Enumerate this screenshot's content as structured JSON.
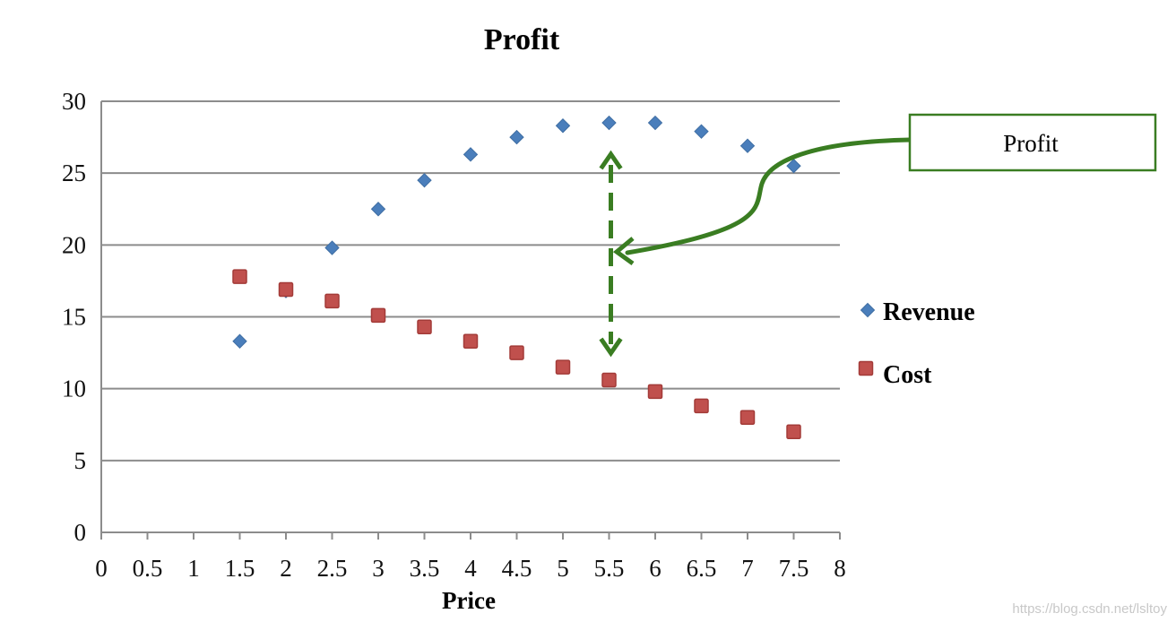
{
  "chart_data": {
    "type": "scatter",
    "title": "Profit",
    "xlabel": "Price",
    "ylabel": "",
    "xlim": [
      0,
      8
    ],
    "ylim": [
      0,
      30
    ],
    "x_ticks": [
      "0",
      "0.5",
      "1",
      "1.5",
      "2",
      "2.5",
      "3",
      "3.5",
      "4",
      "4.5",
      "5",
      "5.5",
      "6",
      "6.5",
      "7",
      "7.5",
      "8"
    ],
    "y_ticks": [
      "0",
      "5",
      "10",
      "15",
      "20",
      "25",
      "30"
    ],
    "grid": "horizontal",
    "legend_position": "right",
    "series": [
      {
        "name": "Revenue",
        "marker": "diamond",
        "color": "#4a7ebb",
        "points": [
          {
            "x": 1.5,
            "y": 13.3
          },
          {
            "x": 2,
            "y": 16.8
          },
          {
            "x": 2.5,
            "y": 19.8
          },
          {
            "x": 3,
            "y": 22.5
          },
          {
            "x": 3.5,
            "y": 24.5
          },
          {
            "x": 4,
            "y": 26.3
          },
          {
            "x": 4.5,
            "y": 27.5
          },
          {
            "x": 5,
            "y": 28.3
          },
          {
            "x": 5.5,
            "y": 28.5
          },
          {
            "x": 6,
            "y": 28.5
          },
          {
            "x": 6.5,
            "y": 27.9
          },
          {
            "x": 7,
            "y": 26.9
          },
          {
            "x": 7.5,
            "y": 25.5
          }
        ]
      },
      {
        "name": "Cost",
        "marker": "square",
        "color": "#c0504d",
        "points": [
          {
            "x": 1.5,
            "y": 17.8
          },
          {
            "x": 2,
            "y": 16.9
          },
          {
            "x": 2.5,
            "y": 16.1
          },
          {
            "x": 3,
            "y": 15.1
          },
          {
            "x": 3.5,
            "y": 14.3
          },
          {
            "x": 4,
            "y": 13.3
          },
          {
            "x": 4.5,
            "y": 12.5
          },
          {
            "x": 5,
            "y": 11.5
          },
          {
            "x": 5.5,
            "y": 10.6
          },
          {
            "x": 6,
            "y": 9.8
          },
          {
            "x": 6.5,
            "y": 8.8
          },
          {
            "x": 7,
            "y": 8.0
          },
          {
            "x": 7.5,
            "y": 7.0
          }
        ]
      }
    ],
    "annotations": [
      {
        "type": "dashed-double-arrow",
        "x": 5.5,
        "y_from": 10.6,
        "y_to": 28.5,
        "color": "#3a7d22"
      },
      {
        "type": "callout",
        "text": "Profit",
        "color": "#3a7d22",
        "points_to": {
          "x": 5.5,
          "y": 19.5
        }
      }
    ]
  },
  "watermark": "https://blog.csdn.net/lsltoy"
}
